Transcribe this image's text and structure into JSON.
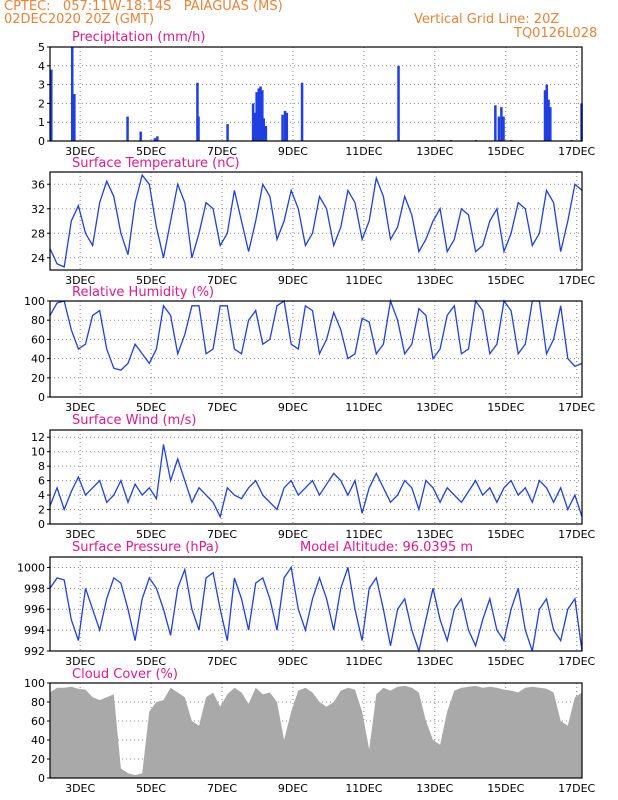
{
  "header": {
    "line1": "CPTEC:   057:11W-18:14S   PAIAGUAS (MS)",
    "line2": "02DEC2020 20Z (GMT)",
    "grid_note": "Vertical Grid Line: 20Z",
    "code": "TQ0126L028"
  },
  "model_altitude_label": "Model Altitude: 96.0395 m",
  "colors": {
    "header": "#e8833a",
    "title": "#e0198c",
    "series": "#1f3fe0",
    "cloud": "#a9a9a9"
  },
  "chart_data": [
    {
      "id": "precip",
      "type": "bar",
      "title": "Precipitation (mm/h)",
      "x_unit": "days since 02DEC2020 20Z",
      "xlim": [
        0,
        15
      ],
      "ylim": [
        0,
        5
      ],
      "y_ticks": [
        0,
        1,
        2,
        3,
        4,
        5
      ],
      "x_ticks": [
        "3DEC",
        "5DEC",
        "7DEC",
        "9DEC",
        "11DEC",
        "13DEC",
        "15DEC",
        "17DEC"
      ],
      "bars": [
        [
          0.03,
          3.8
        ],
        [
          0.62,
          5.0
        ],
        [
          0.68,
          2.5
        ],
        [
          2.18,
          1.3
        ],
        [
          2.55,
          0.5
        ],
        [
          2.95,
          0.15
        ],
        [
          3.02,
          0.25
        ],
        [
          4.15,
          3.1
        ],
        [
          4.18,
          1.3
        ],
        [
          5.0,
          0.9
        ],
        [
          5.72,
          2.0
        ],
        [
          5.78,
          1.5
        ],
        [
          5.82,
          2.6
        ],
        [
          5.88,
          2.8
        ],
        [
          5.93,
          2.9
        ],
        [
          5.98,
          2.7
        ],
        [
          6.02,
          1.2
        ],
        [
          6.08,
          0.8
        ],
        [
          6.55,
          1.4
        ],
        [
          6.62,
          1.6
        ],
        [
          6.67,
          1.5
        ],
        [
          7.1,
          3.1
        ],
        [
          9.82,
          4.0
        ],
        [
          10.95,
          0.05
        ],
        [
          11.3,
          0.05
        ],
        [
          12.0,
          0.05
        ],
        [
          12.55,
          1.9
        ],
        [
          12.65,
          1.3
        ],
        [
          12.72,
          1.8
        ],
        [
          12.78,
          1.3
        ],
        [
          13.0,
          0.05
        ],
        [
          13.95,
          2.7
        ],
        [
          14.0,
          3.0
        ],
        [
          14.05,
          2.2
        ],
        [
          14.1,
          1.8
        ],
        [
          14.7,
          0.05
        ],
        [
          14.98,
          2.0
        ]
      ]
    },
    {
      "id": "temp",
      "type": "line",
      "title": "Surface Temperature (nC)",
      "xlim": [
        0,
        15
      ],
      "ylim": [
        22,
        38
      ],
      "y_ticks": [
        24,
        28,
        32,
        36
      ],
      "x_ticks": [
        "3DEC",
        "5DEC",
        "7DEC",
        "9DEC",
        "11DEC",
        "13DEC",
        "15DEC",
        "17DEC"
      ],
      "x": [
        0,
        0.2,
        0.4,
        0.6,
        0.8,
        1,
        1.2,
        1.4,
        1.6,
        1.8,
        2,
        2.2,
        2.4,
        2.6,
        2.8,
        3,
        3.2,
        3.4,
        3.6,
        3.8,
        4,
        4.2,
        4.4,
        4.6,
        4.8,
        5,
        5.2,
        5.4,
        5.6,
        5.8,
        6,
        6.2,
        6.4,
        6.6,
        6.8,
        7,
        7.2,
        7.4,
        7.6,
        7.8,
        8,
        8.2,
        8.4,
        8.6,
        8.8,
        9,
        9.2,
        9.4,
        9.6,
        9.8,
        10,
        10.2,
        10.4,
        10.6,
        10.8,
        11,
        11.2,
        11.4,
        11.6,
        11.8,
        12,
        12.2,
        12.4,
        12.6,
        12.8,
        13,
        13.2,
        13.4,
        13.6,
        13.8,
        14,
        14.2,
        14.4,
        14.6,
        14.8,
        15
      ],
      "y": [
        25.5,
        23,
        22.5,
        30,
        32.5,
        28,
        26,
        33,
        36.5,
        34,
        28,
        24.5,
        33,
        37.5,
        36,
        29,
        24,
        30,
        36,
        33,
        24,
        28,
        33,
        32,
        26,
        28,
        35,
        30,
        25,
        30,
        36,
        34,
        27,
        30,
        35,
        32,
        26,
        28,
        34,
        32,
        26,
        29,
        35,
        33,
        27,
        30,
        37,
        34,
        27,
        29,
        34,
        31,
        25,
        27,
        30,
        32,
        25,
        27,
        32,
        31,
        25,
        26,
        30,
        32,
        25,
        28,
        33,
        32,
        26,
        28,
        35,
        33,
        25,
        30,
        36,
        35
      ]
    },
    {
      "id": "rh",
      "type": "line",
      "title": "Relative Humidity (%)",
      "xlim": [
        0,
        15
      ],
      "ylim": [
        0,
        100
      ],
      "y_ticks": [
        0,
        20,
        40,
        60,
        80,
        100
      ],
      "x_ticks": [
        "3DEC",
        "5DEC",
        "7DEC",
        "9DEC",
        "11DEC",
        "13DEC",
        "15DEC",
        "17DEC"
      ],
      "x": [
        0,
        0.2,
        0.4,
        0.6,
        0.8,
        1,
        1.2,
        1.4,
        1.6,
        1.8,
        2,
        2.2,
        2.4,
        2.6,
        2.8,
        3,
        3.2,
        3.4,
        3.6,
        3.8,
        4,
        4.2,
        4.4,
        4.6,
        4.8,
        5,
        5.2,
        5.4,
        5.6,
        5.8,
        6,
        6.2,
        6.4,
        6.6,
        6.8,
        7,
        7.2,
        7.4,
        7.6,
        7.8,
        8,
        8.2,
        8.4,
        8.6,
        8.8,
        9,
        9.2,
        9.4,
        9.6,
        9.8,
        10,
        10.2,
        10.4,
        10.6,
        10.8,
        11,
        11.2,
        11.4,
        11.6,
        11.8,
        12,
        12.2,
        12.4,
        12.6,
        12.8,
        13,
        13.2,
        13.4,
        13.6,
        13.8,
        14,
        14.2,
        14.4,
        14.6,
        14.8,
        15
      ],
      "y": [
        85,
        98,
        100,
        70,
        50,
        55,
        85,
        90,
        50,
        30,
        28,
        35,
        55,
        45,
        35,
        50,
        95,
        85,
        45,
        65,
        95,
        95,
        45,
        50,
        95,
        95,
        50,
        45,
        80,
        90,
        55,
        60,
        95,
        100,
        55,
        50,
        95,
        90,
        45,
        60,
        88,
        70,
        40,
        45,
        82,
        78,
        45,
        55,
        100,
        80,
        45,
        55,
        92,
        85,
        40,
        50,
        85,
        95,
        45,
        50,
        100,
        90,
        45,
        55,
        100,
        90,
        45,
        55,
        100,
        100,
        45,
        60,
        95,
        40,
        32,
        35
      ]
    },
    {
      "id": "wind",
      "type": "line",
      "title": "Surface Wind (m/s)",
      "xlim": [
        0,
        15
      ],
      "ylim": [
        0,
        13
      ],
      "y_ticks": [
        0,
        2,
        4,
        6,
        8,
        10,
        12
      ],
      "x_ticks": [
        "3DEC",
        "5DEC",
        "7DEC",
        "9DEC",
        "11DEC",
        "13DEC",
        "15DEC",
        "17DEC"
      ],
      "x": [
        0,
        0.2,
        0.4,
        0.6,
        0.8,
        1,
        1.2,
        1.4,
        1.6,
        1.8,
        2,
        2.2,
        2.4,
        2.6,
        2.8,
        3,
        3.2,
        3.4,
        3.6,
        3.8,
        4,
        4.2,
        4.4,
        4.6,
        4.8,
        5,
        5.2,
        5.4,
        5.6,
        5.8,
        6,
        6.2,
        6.4,
        6.6,
        6.8,
        7,
        7.2,
        7.4,
        7.6,
        7.8,
        8,
        8.2,
        8.4,
        8.6,
        8.8,
        9,
        9.2,
        9.4,
        9.6,
        9.8,
        10,
        10.2,
        10.4,
        10.6,
        10.8,
        11,
        11.2,
        11.4,
        11.6,
        11.8,
        12,
        12.2,
        12.4,
        12.6,
        12.8,
        13,
        13.2,
        13.4,
        13.6,
        13.8,
        14,
        14.2,
        14.4,
        14.6,
        14.8,
        15
      ],
      "y": [
        2.5,
        5,
        2,
        4.5,
        6.5,
        4,
        5,
        6,
        3,
        4,
        6,
        3,
        5.5,
        4,
        5,
        3.5,
        11,
        6,
        9,
        6,
        3,
        5,
        4,
        3,
        1,
        5,
        4,
        3.5,
        5,
        6,
        4,
        3,
        2,
        5,
        6,
        4,
        5,
        6,
        4,
        5.5,
        7,
        6,
        4,
        6,
        1.5,
        5,
        7,
        5,
        3,
        4,
        6,
        5,
        2,
        6,
        5,
        3,
        5,
        4,
        3,
        4.5,
        6,
        4,
        5,
        3,
        5,
        6,
        4,
        5,
        3,
        6,
        5,
        3,
        5,
        2,
        4,
        1
      ]
    },
    {
      "id": "pressure",
      "type": "line",
      "title": "Surface Pressure (hPa)",
      "xlim": [
        0,
        15
      ],
      "ylim": [
        992,
        1001
      ],
      "y_ticks": [
        992,
        994,
        996,
        998,
        1000
      ],
      "x_ticks": [
        "3DEC",
        "5DEC",
        "7DEC",
        "9DEC",
        "11DEC",
        "13DEC",
        "15DEC",
        "17DEC"
      ],
      "x": [
        0,
        0.2,
        0.4,
        0.6,
        0.8,
        1,
        1.2,
        1.4,
        1.6,
        1.8,
        2,
        2.2,
        2.4,
        2.6,
        2.8,
        3,
        3.2,
        3.4,
        3.6,
        3.8,
        4,
        4.2,
        4.4,
        4.6,
        4.8,
        5,
        5.2,
        5.4,
        5.6,
        5.8,
        6,
        6.2,
        6.4,
        6.6,
        6.8,
        7,
        7.2,
        7.4,
        7.6,
        7.8,
        8,
        8.2,
        8.4,
        8.6,
        8.8,
        9,
        9.2,
        9.4,
        9.6,
        9.8,
        10,
        10.2,
        10.4,
        10.6,
        10.8,
        11,
        11.2,
        11.4,
        11.6,
        11.8,
        12,
        12.2,
        12.4,
        12.6,
        12.8,
        13,
        13.2,
        13.4,
        13.6,
        13.8,
        14,
        14.2,
        14.4,
        14.6,
        14.8,
        15
      ],
      "y": [
        998,
        999,
        998.8,
        995,
        993,
        998,
        996,
        994,
        997,
        999,
        998.5,
        996,
        993,
        997,
        999,
        998,
        996,
        993.5,
        998,
        999.8,
        996,
        994,
        999,
        999.5,
        996,
        993,
        999,
        997,
        994,
        998.5,
        999,
        997,
        994,
        999,
        1000,
        996,
        994,
        997,
        999,
        997,
        994,
        998,
        1000,
        996,
        993,
        998,
        999,
        996,
        992.5,
        996,
        997,
        994,
        992,
        995,
        998,
        995,
        993,
        996,
        997,
        994,
        992.5,
        995,
        997,
        994,
        993,
        996,
        998,
        994,
        992,
        996,
        997,
        994,
        993,
        996,
        997,
        992
      ]
    },
    {
      "id": "cloud",
      "type": "area",
      "title": "Cloud Cover (%)",
      "xlim": [
        0,
        15
      ],
      "ylim": [
        0,
        100
      ],
      "y_ticks": [
        0,
        20,
        40,
        60,
        80,
        100
      ],
      "x_ticks": [
        "3DEC",
        "5DEC",
        "7DEC",
        "9DEC",
        "11DEC",
        "13DEC",
        "15DEC",
        "17DEC"
      ],
      "x": [
        0,
        0.2,
        0.4,
        0.6,
        0.8,
        1,
        1.2,
        1.4,
        1.6,
        1.8,
        2,
        2.2,
        2.4,
        2.6,
        2.8,
        3,
        3.2,
        3.4,
        3.6,
        3.8,
        4,
        4.2,
        4.4,
        4.6,
        4.8,
        5,
        5.2,
        5.4,
        5.6,
        5.8,
        6,
        6.2,
        6.4,
        6.6,
        6.8,
        7,
        7.2,
        7.4,
        7.6,
        7.8,
        8,
        8.2,
        8.4,
        8.6,
        8.8,
        9,
        9.2,
        9.4,
        9.6,
        9.8,
        10,
        10.2,
        10.4,
        10.6,
        10.8,
        11,
        11.2,
        11.4,
        11.6,
        11.8,
        12,
        12.2,
        12.4,
        12.6,
        12.8,
        13,
        13.2,
        13.4,
        13.6,
        13.8,
        14,
        14.2,
        14.4,
        14.6,
        14.8,
        15
      ],
      "y": [
        90,
        95,
        95,
        96,
        94,
        93,
        85,
        82,
        85,
        88,
        10,
        5,
        3,
        5,
        70,
        80,
        82,
        95,
        90,
        85,
        60,
        55,
        85,
        90,
        75,
        88,
        95,
        90,
        78,
        95,
        88,
        90,
        80,
        40,
        70,
        92,
        95,
        90,
        80,
        75,
        80,
        92,
        95,
        93,
        70,
        30,
        88,
        95,
        92,
        96,
        97,
        95,
        90,
        60,
        40,
        35,
        70,
        92,
        95,
        96,
        97,
        95,
        96,
        95,
        93,
        92,
        90,
        95,
        96,
        95,
        94,
        90,
        60,
        55,
        85,
        90
      ]
    }
  ]
}
